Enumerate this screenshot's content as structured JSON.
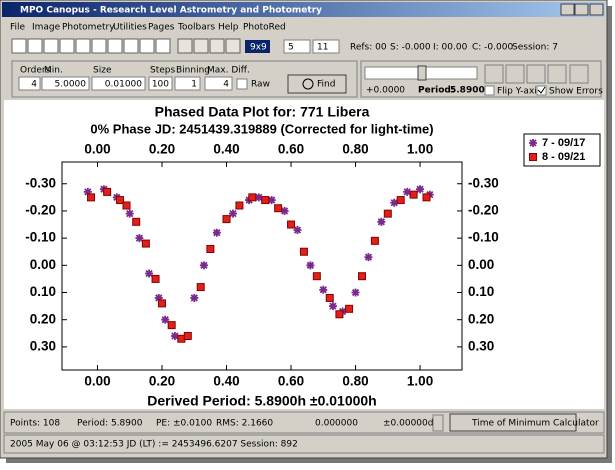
{
  "window": {
    "title": "MPO Canopus - Research Level Astrometry and Photometry",
    "menu": [
      "File",
      "Image",
      "Photometry",
      "Utilities",
      "Pages",
      "Toolbars",
      "Help",
      "PhotoRed"
    ],
    "toolbar": {
      "grid": "9x9",
      "aperture": "5",
      "outer": "11",
      "refs": "Refs: 00",
      "s": "S: -0.000",
      "i": "I: 00.00",
      "c": "C: -0.000",
      "session": "Session: 7"
    },
    "search": {
      "labels": [
        "Orders",
        "Min.",
        "Size",
        "Steps",
        "Binning",
        "Max. Diff."
      ],
      "values": [
        "4",
        "5.0000",
        "0.01000",
        "100",
        "1",
        "4"
      ],
      "raw": "Raw",
      "find": "Find"
    },
    "period_panel": {
      "offset": "+0.0000",
      "period_label": "Period:",
      "period": "5.8900",
      "flip": "Flip Y-axis",
      "errors": "Show Errors"
    },
    "status": {
      "points": "Points: 108",
      "period": "Period: 5.8900",
      "pe": "PE: ±0.0100",
      "rms": "RMS: 2.1660",
      "value": "0.000000",
      "delta": "±0.00000d",
      "button": "Time of Minimum Calculator"
    },
    "footer": "2005 May 06 @ 03:12:53 JD (LT) := 2453496.6207   Session: 892"
  },
  "chart_data": {
    "type": "scatter",
    "title": "Phased Data Plot for: 771 Libera",
    "subtitle": "0% Phase JD:  2451439.319889   (Corrected for light-time)",
    "x_label": "Derived Period: 5.8900h   ±0.01000h",
    "xlim": [
      -0.11,
      1.13
    ],
    "ylim": [
      0.385,
      -0.38
    ],
    "xticks": [
      {
        "value": 0,
        "label": "0.00"
      },
      {
        "value": 0.2,
        "label": "0.20"
      },
      {
        "value": 0.4,
        "label": "0.40"
      },
      {
        "value": 0.6,
        "label": "0.60"
      },
      {
        "value": 0.8,
        "label": "0.80"
      },
      {
        "value": 1,
        "label": "1.00"
      }
    ],
    "yticks": [
      {
        "value": -0.3,
        "label": "-0.30"
      },
      {
        "value": -0.2,
        "label": "-0.20"
      },
      {
        "value": -0.1,
        "label": "-0.10"
      },
      {
        "value": 0,
        "label": "0.00"
      },
      {
        "value": 0.1,
        "label": "0.10"
      },
      {
        "value": 0.2,
        "label": "0.20"
      },
      {
        "value": 0.3,
        "label": "0.30"
      }
    ],
    "series": [
      {
        "name": "7 - 09/17",
        "color": "#7a2a8c",
        "marker": "asterisk",
        "x": [
          -0.03,
          0.02,
          0.06,
          0.1,
          0.13,
          0.16,
          0.19,
          0.21,
          0.24,
          0.3,
          0.33,
          0.37,
          0.42,
          0.47,
          0.5,
          0.54,
          0.58,
          0.62,
          0.66,
          0.7,
          0.73,
          0.76,
          0.8,
          0.84,
          0.88,
          0.92,
          0.96,
          1.0,
          1.03
        ],
        "values": [
          -0.27,
          -0.28,
          -0.25,
          -0.19,
          -0.1,
          0.03,
          0.12,
          0.2,
          0.26,
          0.12,
          0.0,
          -0.12,
          -0.19,
          -0.24,
          -0.25,
          -0.24,
          -0.2,
          -0.13,
          0.0,
          0.09,
          0.15,
          0.17,
          0.1,
          -0.03,
          -0.16,
          -0.23,
          -0.27,
          -0.28,
          -0.26
        ]
      },
      {
        "name": "8 - 09/21",
        "color": "#e0201a",
        "marker": "square",
        "x": [
          -0.02,
          0.03,
          0.07,
          0.09,
          0.12,
          0.15,
          0.18,
          0.2,
          0.23,
          0.26,
          0.28,
          0.32,
          0.35,
          0.4,
          0.44,
          0.48,
          0.52,
          0.56,
          0.6,
          0.64,
          0.68,
          0.72,
          0.75,
          0.78,
          0.82,
          0.86,
          0.9,
          0.94,
          0.98,
          1.02
        ],
        "values": [
          -0.25,
          -0.27,
          -0.24,
          -0.22,
          -0.16,
          -0.08,
          0.05,
          0.14,
          0.22,
          0.27,
          0.26,
          0.08,
          -0.06,
          -0.17,
          -0.22,
          -0.25,
          -0.24,
          -0.21,
          -0.15,
          -0.05,
          0.04,
          0.12,
          0.18,
          0.16,
          0.04,
          -0.09,
          -0.19,
          -0.24,
          -0.26,
          -0.25
        ]
      }
    ]
  }
}
